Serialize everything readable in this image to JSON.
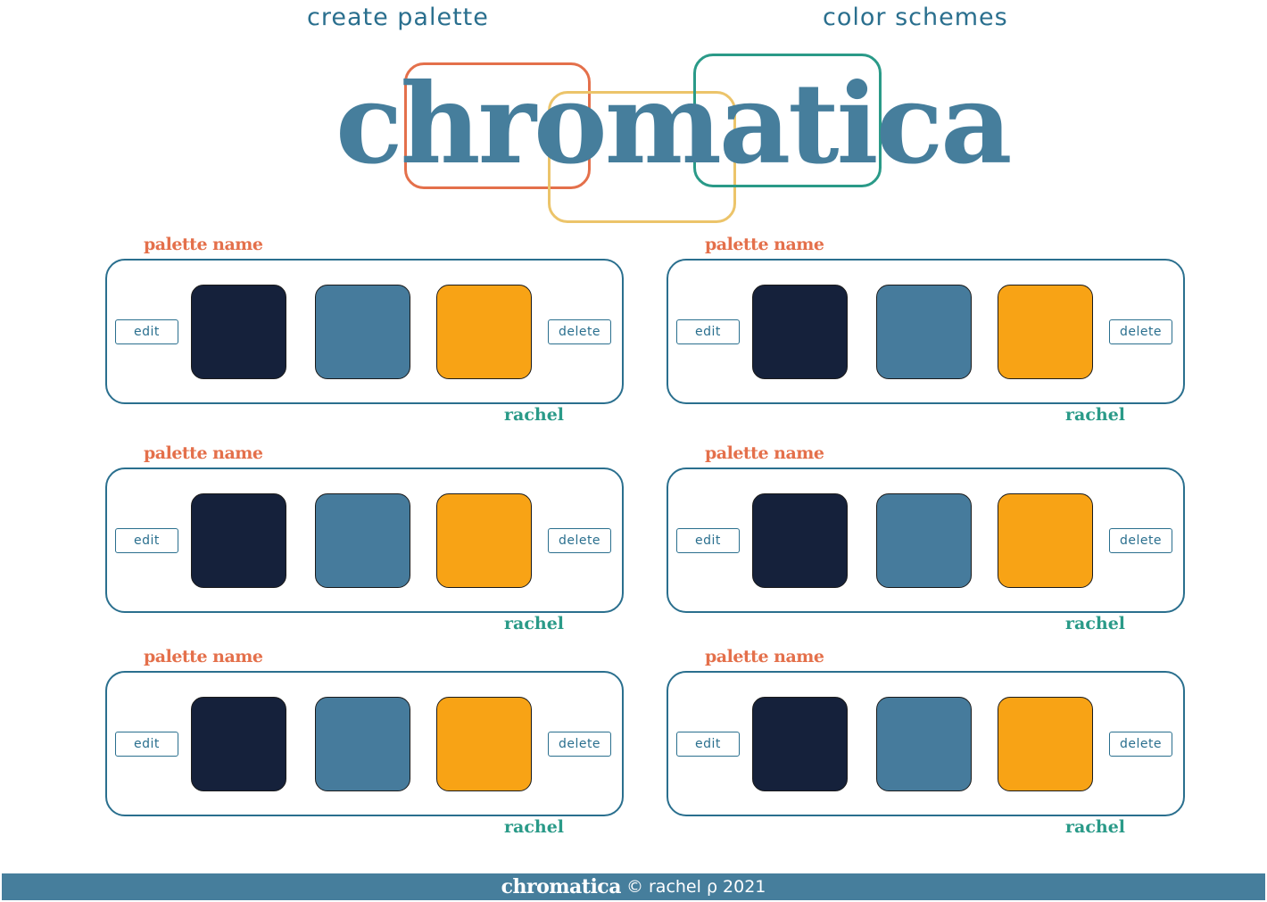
{
  "nav": {
    "create_palette": "create palette",
    "color_schemes": "color schemes"
  },
  "logo": "chromatica",
  "colors": {
    "primary_blue": "#467e9c",
    "accent_orange": "#e4704b",
    "accent_yellow": "#ecc46a",
    "accent_teal": "#2a9a88"
  },
  "palettes": [
    {
      "name": "palette name",
      "edit_label": "edit",
      "delete_label": "delete",
      "author": "rachel",
      "swatches": [
        "#15213b",
        "#467b9c",
        "#f8a315"
      ]
    },
    {
      "name": "palette name",
      "edit_label": "edit",
      "delete_label": "delete",
      "author": "rachel",
      "swatches": [
        "#15213b",
        "#467b9c",
        "#f8a315"
      ]
    },
    {
      "name": "palette name",
      "edit_label": "edit",
      "delete_label": "delete",
      "author": "rachel",
      "swatches": [
        "#15213b",
        "#467b9c",
        "#f8a315"
      ]
    },
    {
      "name": "palette name",
      "edit_label": "edit",
      "delete_label": "delete",
      "author": "rachel",
      "swatches": [
        "#15213b",
        "#467b9c",
        "#f8a315"
      ]
    },
    {
      "name": "palette name",
      "edit_label": "edit",
      "delete_label": "delete",
      "author": "rachel",
      "swatches": [
        "#15213b",
        "#467b9c",
        "#f8a315"
      ]
    },
    {
      "name": "palette name",
      "edit_label": "edit",
      "delete_label": "delete",
      "author": "rachel",
      "swatches": [
        "#15213b",
        "#467b9c",
        "#f8a315"
      ]
    }
  ],
  "footer": {
    "brand": "chromatica",
    "credit": "© rachel ρ 2021"
  }
}
